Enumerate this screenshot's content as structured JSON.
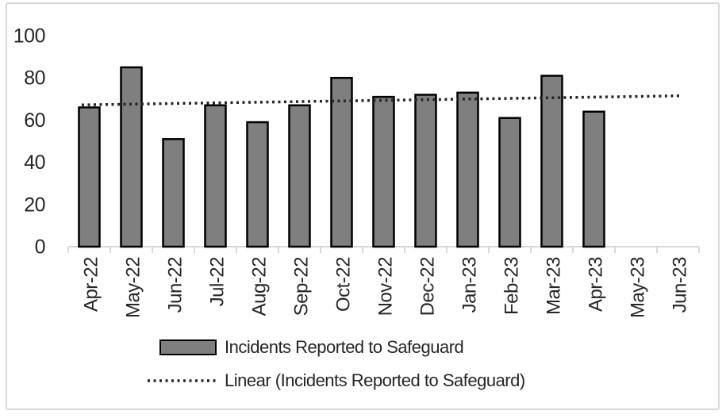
{
  "chart_data": {
    "type": "bar",
    "title": "",
    "categories": [
      "Apr-22",
      "May-22",
      "Jun-22",
      "Jul-22",
      "Aug-22",
      "Sep-22",
      "Oct-22",
      "Nov-22",
      "Dec-22",
      "Jan-23",
      "Feb-23",
      "Mar-23",
      "Apr-23",
      "May-23",
      "Jun-23"
    ],
    "series": [
      {
        "name": "Incidents Reported to Safeguard",
        "values": [
          66,
          85,
          51,
          67,
          59,
          67,
          80,
          71,
          72,
          73,
          61,
          81,
          64,
          null,
          null
        ]
      }
    ],
    "trendline": {
      "name": "Linear (Incidents Reported to Safeguard)",
      "style": "dotted",
      "start_value": 67.2,
      "end_value": 71.5
    },
    "y_axis": {
      "min": 0,
      "max": 100,
      "ticks": [
        0,
        20,
        40,
        60,
        80,
        100
      ]
    },
    "x_axis": {
      "label_rotation_deg": -90
    },
    "grid": "off",
    "legend": {
      "position": "bottom",
      "entries": [
        {
          "label": "Incidents Reported to Safeguard",
          "marker": "bar-swatch"
        },
        {
          "label": "Linear (Incidents Reported to Safeguard)",
          "marker": "dotted-line"
        }
      ]
    },
    "colors": {
      "bar_fill": "#7f7f7f",
      "bar_border": "#000000",
      "trend_line": "#262626",
      "axis_line": "#d9d9d9",
      "text": "#262626",
      "background": "#ffffff",
      "frame_border": "#d9d9d9"
    }
  }
}
